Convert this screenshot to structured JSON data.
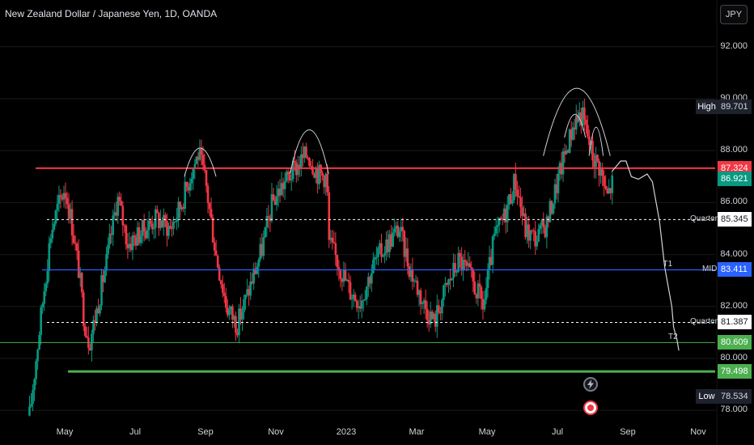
{
  "header": {
    "title": "New Zealand Dollar / Japanese Yen, 1D, OANDA",
    "currency": "JPY"
  },
  "chart_data": {
    "type": "candlestick",
    "title": "New Zealand Dollar / Japanese Yen, 1D, OANDA",
    "currency": "JPY",
    "ylim": [
      77.6,
      93.8
    ],
    "y_ticks": [
      "92.000",
      "90.000",
      "88.000",
      "86.000",
      "84.000",
      "82.000",
      "80.000",
      "78.000"
    ],
    "y_tick_values": [
      92,
      90,
      88,
      86,
      84,
      82,
      80,
      78
    ],
    "x_ticks": [
      "May",
      "Jul",
      "Sep",
      "Nov",
      "2023",
      "Mar",
      "May",
      "Jul",
      "Sep",
      "Nov"
    ],
    "x_tick_months": [
      0,
      2,
      4,
      6,
      8,
      10,
      12,
      14,
      16,
      18
    ],
    "first_month": "2022-04",
    "last_candle_month": 15.6,
    "price_path": [
      [
        -1.0,
        77.8
      ],
      [
        -0.6,
        82.5
      ],
      [
        -0.4,
        84.8
      ],
      [
        -0.2,
        85.8
      ],
      [
        0.0,
        86.6
      ],
      [
        0.2,
        85.2
      ],
      [
        0.4,
        83.4
      ],
      [
        0.55,
        81.5
      ],
      [
        0.7,
        80.6
      ],
      [
        0.9,
        81.8
      ],
      [
        1.2,
        83.8
      ],
      [
        1.5,
        86.2
      ],
      [
        1.8,
        84.4
      ],
      [
        2.2,
        84.9
      ],
      [
        2.6,
        85.4
      ],
      [
        3.0,
        85.0
      ],
      [
        3.3,
        85.9
      ],
      [
        3.6,
        87.2
      ],
      [
        3.8,
        87.9
      ],
      [
        4.0,
        86.8
      ],
      [
        4.3,
        84.0
      ],
      [
        4.6,
        82.0
      ],
      [
        4.9,
        81.3
      ],
      [
        5.2,
        82.5
      ],
      [
        5.6,
        84.2
      ],
      [
        5.9,
        86.0
      ],
      [
        6.2,
        86.7
      ],
      [
        6.6,
        87.4
      ],
      [
        6.9,
        87.9
      ],
      [
        7.2,
        87.1
      ],
      [
        7.45,
        87.0
      ],
      [
        7.5,
        84.5
      ],
      [
        7.8,
        83.6
      ],
      [
        8.1,
        82.6
      ],
      [
        8.4,
        82.2
      ],
      [
        8.8,
        83.7
      ],
      [
        9.2,
        84.5
      ],
      [
        9.5,
        85.0
      ],
      [
        9.8,
        83.5
      ],
      [
        10.2,
        82.1
      ],
      [
        10.5,
        81.4
      ],
      [
        10.8,
        82.6
      ],
      [
        11.2,
        83.8
      ],
      [
        11.5,
        83.2
      ],
      [
        11.9,
        82.0
      ],
      [
        12.2,
        84.6
      ],
      [
        12.5,
        85.5
      ],
      [
        12.8,
        86.9
      ],
      [
        13.1,
        84.9
      ],
      [
        13.4,
        84.6
      ],
      [
        13.7,
        85.2
      ],
      [
        14.0,
        86.8
      ],
      [
        14.3,
        88.3
      ],
      [
        14.5,
        89.2
      ],
      [
        14.7,
        89.4
      ],
      [
        14.85,
        88.6
      ],
      [
        15.0,
        87.8
      ],
      [
        15.2,
        87.4
      ],
      [
        15.4,
        86.2
      ],
      [
        15.6,
        86.9
      ]
    ],
    "levels": [
      {
        "label": "High",
        "value": 89.701,
        "value_text": "89.701",
        "line": "none",
        "color": "#ffffff",
        "tag_bg": "#1e222d",
        "tag_fg": "#d1d4dc"
      },
      {
        "label": "",
        "value": 87.324,
        "value_text": "87.324",
        "line": "solid",
        "color": "#f23645",
        "tag_bg": "#f23645",
        "tag_fg": "#ffffff"
      },
      {
        "label": "",
        "value": 86.921,
        "value_text": "86.921",
        "line": "none",
        "color": "#089981",
        "tag_bg": "#089981",
        "tag_fg": "#ffffff"
      },
      {
        "label": "Quarter",
        "value": 85.345,
        "value_text": "85.345",
        "line": "dashed",
        "color": "#ffffff",
        "tag_bg": "#ffffff",
        "tag_fg": "#131722"
      },
      {
        "label": "MID",
        "value": 83.411,
        "value_text": "83.411",
        "line": "solid",
        "color": "#2962ff",
        "tag_bg": "#2962ff",
        "tag_fg": "#ffffff"
      },
      {
        "label": "Quarter",
        "value": 81.387,
        "value_text": "81.387",
        "line": "dashed",
        "color": "#ffffff",
        "tag_bg": "#ffffff",
        "tag_fg": "#131722"
      },
      {
        "label": "",
        "value": 80.609,
        "value_text": "80.609",
        "line": "thin",
        "color": "#4caf50",
        "tag_bg": "#4caf50",
        "tag_fg": "#ffffff"
      },
      {
        "label": "",
        "value": 79.498,
        "value_text": "79.498",
        "line": "thick",
        "color": "#4caf50",
        "tag_bg": "#4caf50",
        "tag_fg": "#ffffff"
      },
      {
        "label": "Low",
        "value": 78.534,
        "value_text": "78.534",
        "line": "none",
        "color": "#ffffff",
        "tag_bg": "#1e222d",
        "tag_fg": "#d1d4dc"
      }
    ],
    "arcs": [
      {
        "x": [
          3.4,
          4.3
        ],
        "base": 87.0,
        "peak": 88.1
      },
      {
        "x": [
          6.4,
          7.5
        ],
        "base": 87.1,
        "peak": 88.8
      },
      {
        "x": [
          13.6,
          15.5
        ],
        "base": 87.8,
        "peak": 90.4
      },
      {
        "x": [
          14.2,
          14.8
        ],
        "base": 88.5,
        "peak": 89.4
      },
      {
        "x": [
          14.9,
          15.3
        ],
        "base": 87.8,
        "peak": 88.9
      }
    ],
    "projection": [
      [
        15.55,
        87.2
      ],
      [
        15.8,
        87.6
      ],
      [
        15.95,
        87.6
      ],
      [
        16.1,
        87.0
      ],
      [
        16.3,
        86.9
      ],
      [
        16.55,
        87.1
      ],
      [
        16.7,
        86.8
      ],
      [
        16.9,
        85.3
      ],
      [
        17.05,
        83.5
      ],
      [
        17.25,
        82.0
      ],
      [
        17.3,
        81.2
      ],
      [
        17.4,
        80.7
      ],
      [
        17.45,
        80.3
      ]
    ],
    "annotations": [
      {
        "text": "T1",
        "x": 17.0,
        "y": 83.6
      },
      {
        "text": "T2",
        "x": 17.15,
        "y": 80.8
      }
    ],
    "colors": {
      "up": "#089981",
      "down": "#f23645",
      "background": "#000000",
      "grid": "#1a1a1a",
      "projection": "#d1d4dc"
    }
  }
}
